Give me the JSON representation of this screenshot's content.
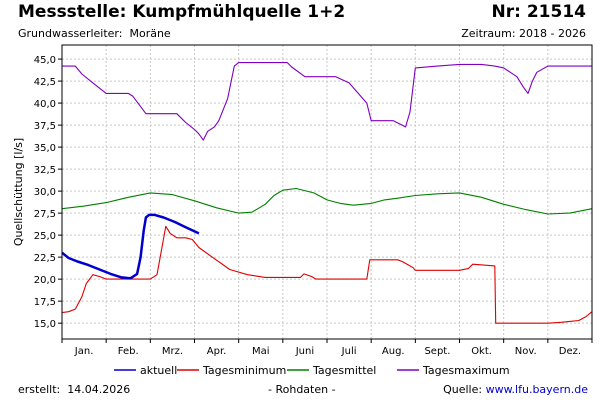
{
  "header": {
    "title": "Messstelle: Kumpfmühlquelle 1+2",
    "number": "Nr: 21514",
    "aquifer_label": "Grundwasserleiter:",
    "aquifer_value": "Moräne",
    "period": "Zeitraum: 2018 - 2026"
  },
  "footer": {
    "created_label": "erstellt:",
    "created_date": "14.04.2026",
    "raw_note": "- Rohdaten -",
    "source_label": "Quelle:",
    "source_link": "www.lfu.bayern.de"
  },
  "colors": {
    "aktuell": "#0000cc",
    "minimum": "#e00000",
    "mittel": "#008000",
    "maximum": "#8000c0",
    "grid": "#c8c8c8"
  },
  "chart_data": {
    "type": "line",
    "title": "",
    "xlabel": "",
    "ylabel": "Quellschüttung [l/s]",
    "ylim": [
      13.2,
      46.6
    ],
    "yticks": [
      "15,0",
      "17,5",
      "20,0",
      "22,5",
      "25,0",
      "27,5",
      "30,0",
      "32,5",
      "35,0",
      "37,5",
      "40,0",
      "42,5",
      "45,0"
    ],
    "x_unit": "month (1 = start of January, 13 = end of December)",
    "categories": [
      "Jan.",
      "Feb.",
      "Mrz.",
      "Apr.",
      "Mai",
      "Juni",
      "Juli",
      "Aug.",
      "Sept.",
      "Okt.",
      "Nov.",
      "Dez."
    ],
    "grid": true,
    "legend_position": "bottom",
    "series": [
      {
        "name": "aktuell",
        "color_key": "aktuell",
        "x": [
          1.0,
          1.15,
          1.35,
          1.6,
          1.85,
          2.1,
          2.35,
          2.55,
          2.7,
          2.78,
          2.85,
          2.9,
          2.97,
          3.1,
          3.3,
          3.55,
          3.8,
          4.1
        ],
        "y": [
          23.0,
          22.4,
          22.0,
          21.6,
          21.1,
          20.6,
          20.2,
          20.1,
          20.6,
          22.5,
          25.5,
          27.0,
          27.3,
          27.3,
          27.0,
          26.5,
          25.9,
          25.2
        ]
      },
      {
        "name": "Tagesminimum",
        "color_key": "minimum",
        "x": [
          1.0,
          1.15,
          1.3,
          1.45,
          1.55,
          1.7,
          1.85,
          2.0,
          2.5,
          3.0,
          3.15,
          3.35,
          3.45,
          3.6,
          3.8,
          3.95,
          4.1,
          4.4,
          4.8,
          5.2,
          5.6,
          6.0,
          6.4,
          6.48,
          6.65,
          6.75,
          7.0,
          7.5,
          7.9,
          7.97,
          8.3,
          8.6,
          8.7,
          8.85,
          8.95,
          9.0,
          9.5,
          9.9,
          10.0,
          10.2,
          10.3,
          10.8,
          10.82,
          11.4,
          12.0,
          12.3,
          12.5,
          12.7,
          12.85,
          13.0
        ],
        "y": [
          16.2,
          16.3,
          16.6,
          18.0,
          19.5,
          20.5,
          20.3,
          20.0,
          20.0,
          20.0,
          20.5,
          26.0,
          25.2,
          24.7,
          24.7,
          24.5,
          23.6,
          22.5,
          21.1,
          20.5,
          20.2,
          20.2,
          20.2,
          20.6,
          20.3,
          20.0,
          20.0,
          20.0,
          20.0,
          22.2,
          22.2,
          22.2,
          22.0,
          21.6,
          21.3,
          21.0,
          21.0,
          21.0,
          21.0,
          21.2,
          21.7,
          21.5,
          15.0,
          15.0,
          15.0,
          15.1,
          15.2,
          15.3,
          15.7,
          16.3
        ]
      },
      {
        "name": "Tagesmittel",
        "color_key": "mittel",
        "x": [
          1.0,
          1.5,
          2.0,
          2.5,
          3.0,
          3.5,
          4.0,
          4.5,
          5.0,
          5.3,
          5.6,
          5.8,
          6.0,
          6.3,
          6.7,
          7.0,
          7.3,
          7.6,
          8.0,
          8.3,
          8.6,
          9.0,
          9.5,
          10.0,
          10.5,
          11.0,
          11.5,
          12.0,
          12.5,
          13.0
        ],
        "y": [
          28.0,
          28.3,
          28.7,
          29.3,
          29.8,
          29.6,
          28.9,
          28.1,
          27.5,
          27.6,
          28.5,
          29.5,
          30.1,
          30.3,
          29.8,
          29.0,
          28.6,
          28.4,
          28.6,
          29.0,
          29.2,
          29.5,
          29.7,
          29.8,
          29.3,
          28.5,
          27.9,
          27.4,
          27.5,
          28.0
        ]
      },
      {
        "name": "Tagesmaximum",
        "color_key": "maximum",
        "x": [
          1.0,
          1.3,
          1.45,
          1.7,
          2.0,
          2.5,
          2.6,
          2.9,
          3.1,
          3.6,
          3.8,
          4.0,
          4.1,
          4.2,
          4.3,
          4.45,
          4.55,
          4.75,
          4.9,
          5.0,
          5.1,
          5.4,
          6.1,
          6.2,
          6.5,
          7.0,
          7.2,
          7.5,
          7.9,
          8.0,
          8.2,
          8.5,
          8.7,
          8.78,
          8.88,
          9.0,
          9.5,
          10.0,
          10.5,
          10.8,
          11.0,
          11.3,
          11.45,
          11.55,
          11.65,
          11.75,
          12.0,
          12.5,
          13.0
        ],
        "y": [
          44.2,
          44.2,
          43.3,
          42.3,
          41.1,
          41.1,
          40.8,
          38.8,
          38.8,
          38.8,
          37.8,
          37.0,
          36.5,
          35.8,
          36.8,
          37.3,
          38.0,
          40.5,
          44.2,
          44.6,
          44.6,
          44.6,
          44.6,
          44.1,
          43.0,
          43.0,
          43.0,
          42.3,
          40.0,
          38.0,
          38.0,
          38.0,
          37.5,
          37.3,
          39.0,
          44.0,
          44.2,
          44.4,
          44.4,
          44.2,
          44.0,
          43.0,
          41.8,
          41.1,
          42.5,
          43.5,
          44.2,
          44.2,
          44.2
        ]
      }
    ]
  }
}
